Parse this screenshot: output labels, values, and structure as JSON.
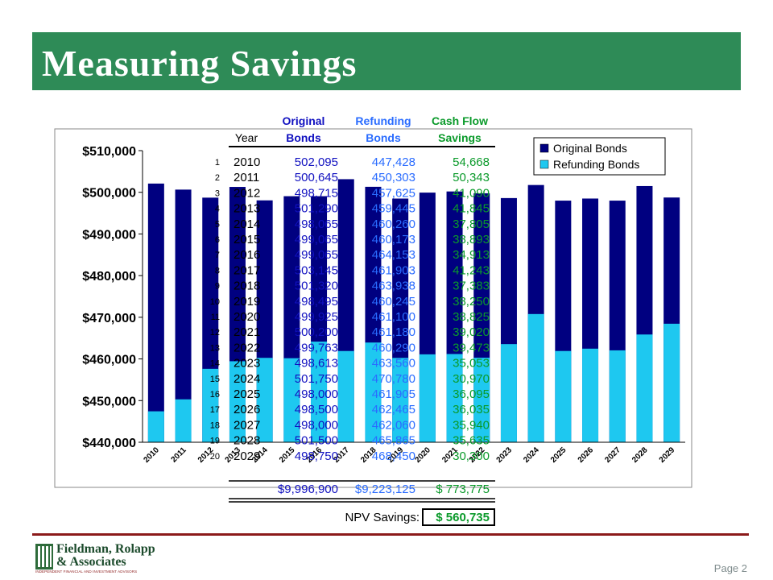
{
  "title": "Measuring Savings",
  "page_label": "Page 2",
  "logo": {
    "line1": "Fieldman, Rolapp",
    "line2": "& Associates",
    "tagline": "INDEPENDENT FINANCIAL AND INVESTMENT ADVISORS"
  },
  "colors": {
    "original": "#000080",
    "refunding": "#1ec8f0",
    "banner": "#2e8b57",
    "original_text": "#1010c0",
    "refunding_text": "#2a6cff",
    "savings_text": "#0a9a2a"
  },
  "chart_data": {
    "type": "bar",
    "categories": [
      "2010",
      "2011",
      "2012",
      "2013",
      "2014",
      "2015",
      "2016",
      "2017",
      "2018",
      "2019",
      "2020",
      "2021",
      "2022",
      "2023",
      "2024",
      "2025",
      "2026",
      "2027",
      "2028",
      "2029"
    ],
    "series": [
      {
        "name": "Original Bonds",
        "values": [
          502095,
          500645,
          498715,
          501290,
          498065,
          499065,
          499065,
          503145,
          501320,
          498495,
          499925,
          500200,
          499763,
          498613,
          501750,
          498000,
          498500,
          498000,
          501500,
          498750
        ]
      },
      {
        "name": "Refunding Bonds",
        "values": [
          447428,
          450303,
          457625,
          459445,
          460260,
          460173,
          464153,
          461903,
          463938,
          460245,
          461100,
          461180,
          460290,
          463560,
          470780,
          461905,
          462465,
          462060,
          465865,
          468450
        ]
      }
    ],
    "ylim": [
      440000,
      510000
    ],
    "yticks": [
      "$440,000",
      "$450,000",
      "$460,000",
      "$470,000",
      "$480,000",
      "$490,000",
      "$500,000",
      "$510,000"
    ],
    "legend_position": "top-right",
    "grid": false
  },
  "table": {
    "headers": {
      "original_line1": "Original",
      "original_line2": "Bonds",
      "refunding_line1": "Refunding",
      "refunding_line2": "Bonds",
      "savings_line1": "Cash Flow",
      "savings_line2": "Savings",
      "year": "Year"
    },
    "rows": [
      {
        "n": "1",
        "year": "2010",
        "original": "502,095",
        "refunding": "447,428",
        "savings": "54,668"
      },
      {
        "n": "2",
        "year": "2011",
        "original": "500,645",
        "refunding": "450,303",
        "savings": "50,343"
      },
      {
        "n": "3",
        "year": "2012",
        "original": "498,715",
        "refunding": "457,625",
        "savings": "41,090"
      },
      {
        "n": "4",
        "year": "2013",
        "original": "501,290",
        "refunding": "459,445",
        "savings": "41,845"
      },
      {
        "n": "5",
        "year": "2014",
        "original": "498,065",
        "refunding": "460,260",
        "savings": "37,805"
      },
      {
        "n": "6",
        "year": "2015",
        "original": "499,065",
        "refunding": "460,173",
        "savings": "38,893"
      },
      {
        "n": "7",
        "year": "2016",
        "original": "499,065",
        "refunding": "464,153",
        "savings": "34,913"
      },
      {
        "n": "8",
        "year": "2017",
        "original": "503,145",
        "refunding": "461,903",
        "savings": "41,243"
      },
      {
        "n": "9",
        "year": "2018",
        "original": "501,320",
        "refunding": "463,938",
        "savings": "37,383"
      },
      {
        "n": "10",
        "year": "2019",
        "original": "498,495",
        "refunding": "460,245",
        "savings": "38,250"
      },
      {
        "n": "11",
        "year": "2020",
        "original": "499,925",
        "refunding": "461,100",
        "savings": "38,825"
      },
      {
        "n": "12",
        "year": "2021",
        "original": "500,200",
        "refunding": "461,180",
        "savings": "39,020"
      },
      {
        "n": "13",
        "year": "2022",
        "original": "499,763",
        "refunding": "460,290",
        "savings": "39,473"
      },
      {
        "n": "14",
        "year": "2023",
        "original": "498,613",
        "refunding": "463,560",
        "savings": "35,053"
      },
      {
        "n": "15",
        "year": "2024",
        "original": "501,750",
        "refunding": "470,780",
        "savings": "30,970"
      },
      {
        "n": "16",
        "year": "2025",
        "original": "498,000",
        "refunding": "461,905",
        "savings": "36,095"
      },
      {
        "n": "17",
        "year": "2026",
        "original": "498,500",
        "refunding": "462,465",
        "savings": "36,035"
      },
      {
        "n": "18",
        "year": "2027",
        "original": "498,000",
        "refunding": "462,060",
        "savings": "35,940"
      },
      {
        "n": "19",
        "year": "2028",
        "original": "501,500",
        "refunding": "465,865",
        "savings": "35,635"
      },
      {
        "n": "20",
        "year": "2029",
        "original": "498,750",
        "refunding": "468,450",
        "savings": "30,300"
      }
    ],
    "totals": {
      "original": "$9,996,900",
      "refunding": "$9,223,125",
      "savings": "$ 773,775"
    },
    "npv_label": "NPV Savings:",
    "npv_value": "$ 560,735"
  }
}
